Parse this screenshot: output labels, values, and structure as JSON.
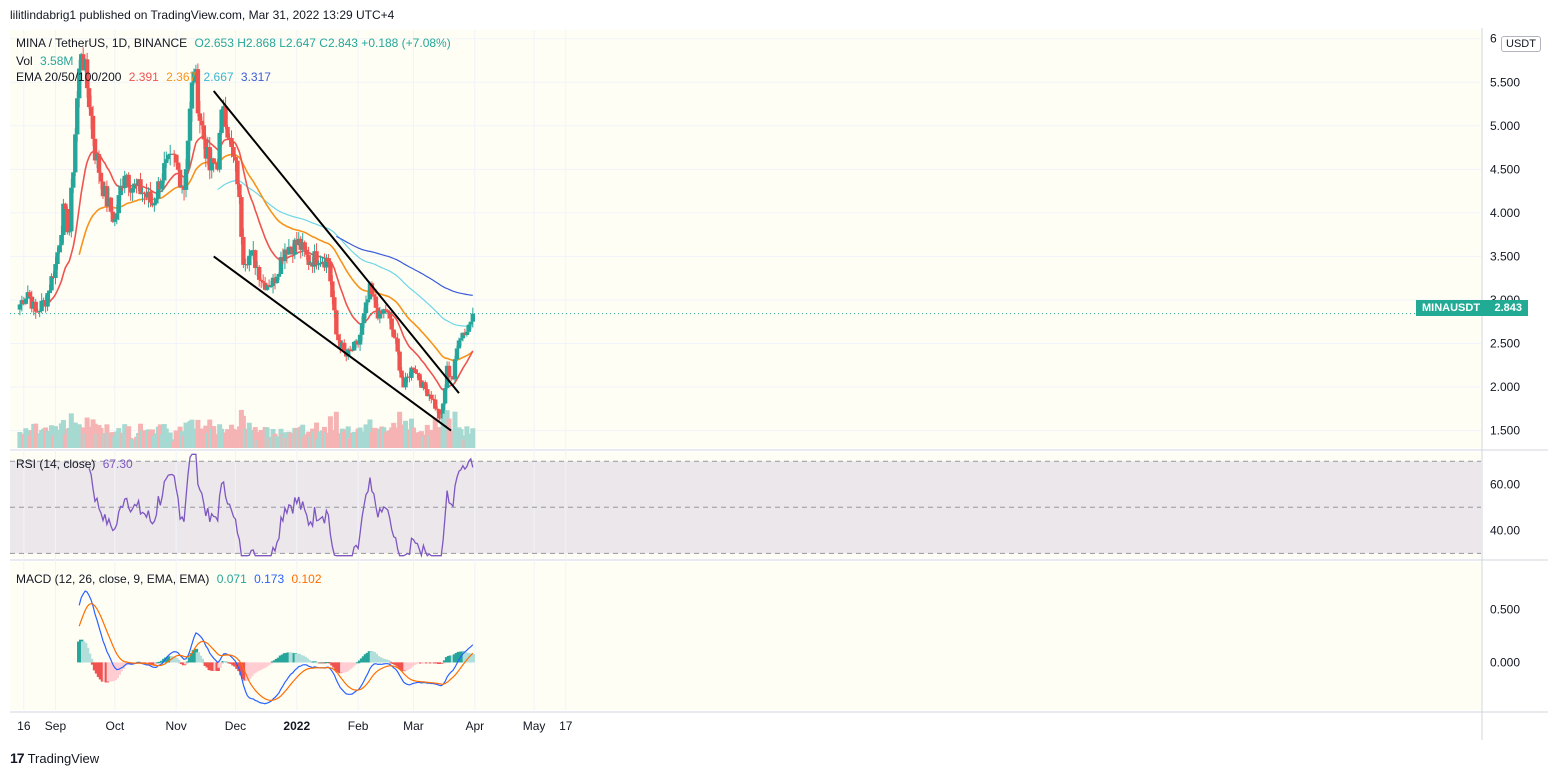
{
  "header": {
    "publisher_line": "lilitlindabrig1 published on TradingView.com, Mar 31, 2022 13:29 UTC+4"
  },
  "legend": {
    "symbol": "MINA / TetherUS, 1D, BINANCE",
    "ohlc": "O2.653 H2.868 L2.647 C2.843 +0.188 (+7.08%)",
    "vol_label": "Vol",
    "vol_value": "3.58M",
    "ema_label": "EMA 20/50/100/200",
    "ema_values": [
      "2.391",
      "2.367",
      "2.667",
      "3.317"
    ],
    "rsi_label": "RSI (14, close)",
    "rsi_value": "67.30",
    "macd_label": "MACD (12, 26, close, 9, EMA, EMA)",
    "macd_values": [
      "0.071",
      "0.173",
      "0.102"
    ]
  },
  "price_scale_unit": "USDT",
  "last_price_tag": {
    "symbol": "MINAUSDT",
    "value": "2.843"
  },
  "footer": {
    "brand": "TradingView",
    "logo_text": "17"
  },
  "colors": {
    "up": "#26a69a",
    "down": "#ef5350",
    "ema20": "#ef5350",
    "ema50": "#f7931a",
    "ema100": "#6fd5e8",
    "ema200": "#3a5bd9",
    "rsi": "#7e57c2",
    "macd": "#2962ff",
    "signal": "#ff6d00",
    "trendline": "#000000",
    "bg": "#fffef5"
  },
  "chart_data": [
    {
      "type": "candlestick",
      "title": "MINA / TetherUS, 1D, BINANCE",
      "x_tick_labels": [
        "16",
        "Sep",
        "Oct",
        "Nov",
        "Dec",
        "2022",
        "Feb",
        "Mar",
        "Apr",
        "May",
        "17"
      ],
      "y_tick_labels": [
        "1.500",
        "2.000",
        "2.500",
        "3.000",
        "3.500",
        "4.000",
        "4.500",
        "5.000",
        "5.500",
        "6"
      ],
      "ylim": [
        1.3,
        6.1
      ],
      "anchors": [
        [
          "2021-08-14",
          2.95
        ],
        [
          "2021-08-18",
          3.1
        ],
        [
          "2021-08-22",
          2.85
        ],
        [
          "2021-08-27",
          3.0
        ],
        [
          "2021-09-01",
          3.4
        ],
        [
          "2021-09-05",
          4.0
        ],
        [
          "2021-09-08",
          3.8
        ],
        [
          "2021-09-12",
          5.3
        ],
        [
          "2021-09-14",
          5.9
        ],
        [
          "2021-09-18",
          5.3
        ],
        [
          "2021-09-21",
          4.7
        ],
        [
          "2021-09-26",
          4.2
        ],
        [
          "2021-10-01",
          3.9
        ],
        [
          "2021-10-06",
          4.5
        ],
        [
          "2021-10-10",
          4.3
        ],
        [
          "2021-10-15",
          4.25
        ],
        [
          "2021-10-20",
          4.1
        ],
        [
          "2021-10-26",
          4.5
        ],
        [
          "2021-10-31",
          4.6
        ],
        [
          "2021-11-05",
          4.3
        ],
        [
          "2021-11-10",
          5.7
        ],
        [
          "2021-11-13",
          5.1
        ],
        [
          "2021-11-18",
          4.5
        ],
        [
          "2021-11-22",
          4.6
        ],
        [
          "2021-11-25",
          5.3
        ],
        [
          "2021-11-28",
          4.8
        ],
        [
          "2021-12-02",
          4.4
        ],
        [
          "2021-12-05",
          3.5
        ],
        [
          "2021-12-10",
          3.5
        ],
        [
          "2021-12-15",
          3.2
        ],
        [
          "2021-12-20",
          3.2
        ],
        [
          "2021-12-26",
          3.6
        ],
        [
          "2022-01-02",
          3.65
        ],
        [
          "2022-01-07",
          3.45
        ],
        [
          "2022-01-12",
          3.5
        ],
        [
          "2022-01-17",
          3.45
        ],
        [
          "2022-01-21",
          2.6
        ],
        [
          "2022-01-26",
          2.35
        ],
        [
          "2022-02-01",
          2.5
        ],
        [
          "2022-02-07",
          3.1
        ],
        [
          "2022-02-12",
          2.8
        ],
        [
          "2022-02-15",
          2.9
        ],
        [
          "2022-02-20",
          2.5
        ],
        [
          "2022-02-24",
          2.0
        ],
        [
          "2022-03-01",
          2.25
        ],
        [
          "2022-03-06",
          2.0
        ],
        [
          "2022-03-10",
          1.9
        ],
        [
          "2022-03-15",
          1.6
        ],
        [
          "2022-03-18",
          2.2
        ],
        [
          "2022-03-21",
          2.1
        ],
        [
          "2022-03-24",
          2.6
        ],
        [
          "2022-03-28",
          2.65
        ],
        [
          "2022-03-31",
          2.843
        ]
      ],
      "last_price": 2.843,
      "overlays": [
        "EMA 20",
        "EMA 50",
        "EMA 100",
        "EMA 200"
      ],
      "trendlines": [
        {
          "from": [
            "2021-11-20",
            5.4
          ],
          "to": [
            "2022-03-24",
            1.93
          ]
        },
        {
          "from": [
            "2021-11-20",
            3.5
          ],
          "to": [
            "2022-03-20",
            1.5
          ]
        }
      ]
    },
    {
      "type": "bar",
      "title": "Vol",
      "series": [
        {
          "name": "Vol",
          "last": 3580000
        }
      ]
    },
    {
      "type": "line",
      "title": "RSI (14, close)",
      "y_tick_labels": [
        "40.00",
        "60.00"
      ],
      "ylim": [
        28,
        74
      ],
      "bands": [
        30,
        50,
        70
      ],
      "last": 67.3
    },
    {
      "type": "line",
      "title": "MACD (12, 26, close, 9, EMA, EMA)",
      "y_tick_labels": [
        "0.000",
        "0.500"
      ],
      "ylim": [
        -0.45,
        0.95
      ],
      "last": {
        "histogram": 0.071,
        "macd": 0.173,
        "signal": 0.102
      }
    }
  ]
}
